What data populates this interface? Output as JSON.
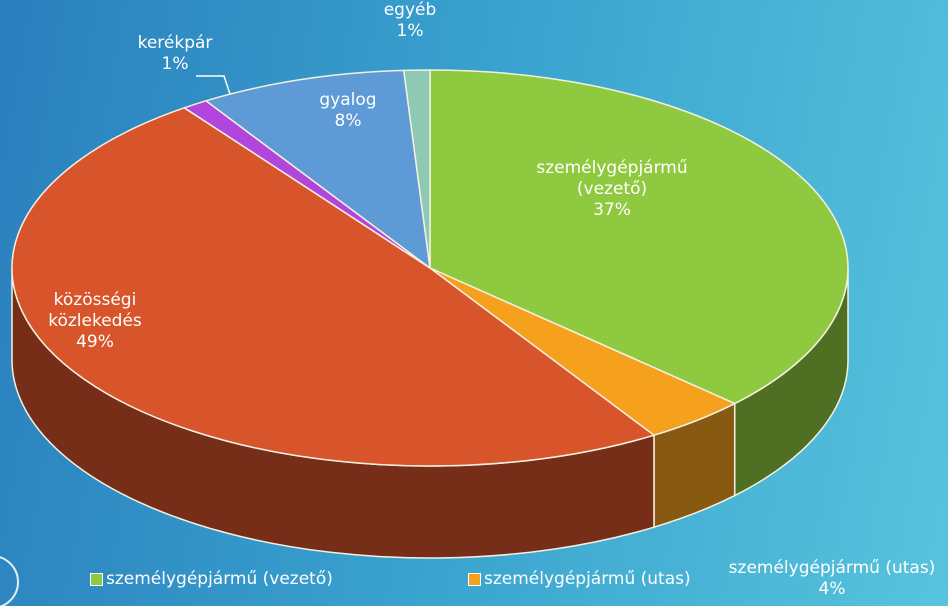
{
  "chart_data": {
    "type": "pie",
    "categories": [
      "személygépjármű (vezető)",
      "személygépjármű (utas)",
      "közösségi közlekedés",
      "kerékpár",
      "gyalog",
      "egyéb"
    ],
    "values": [
      37,
      4,
      49,
      1,
      8,
      1
    ],
    "value_labels": [
      "37%",
      "4%",
      "49%",
      "1%",
      "8%",
      "1%"
    ],
    "colors": [
      "#8fc940",
      "#f5a11e",
      "#d8542b",
      "#b246dc",
      "#5e9bd6",
      "#8ec9b4"
    ],
    "legend": "bottom"
  }
}
